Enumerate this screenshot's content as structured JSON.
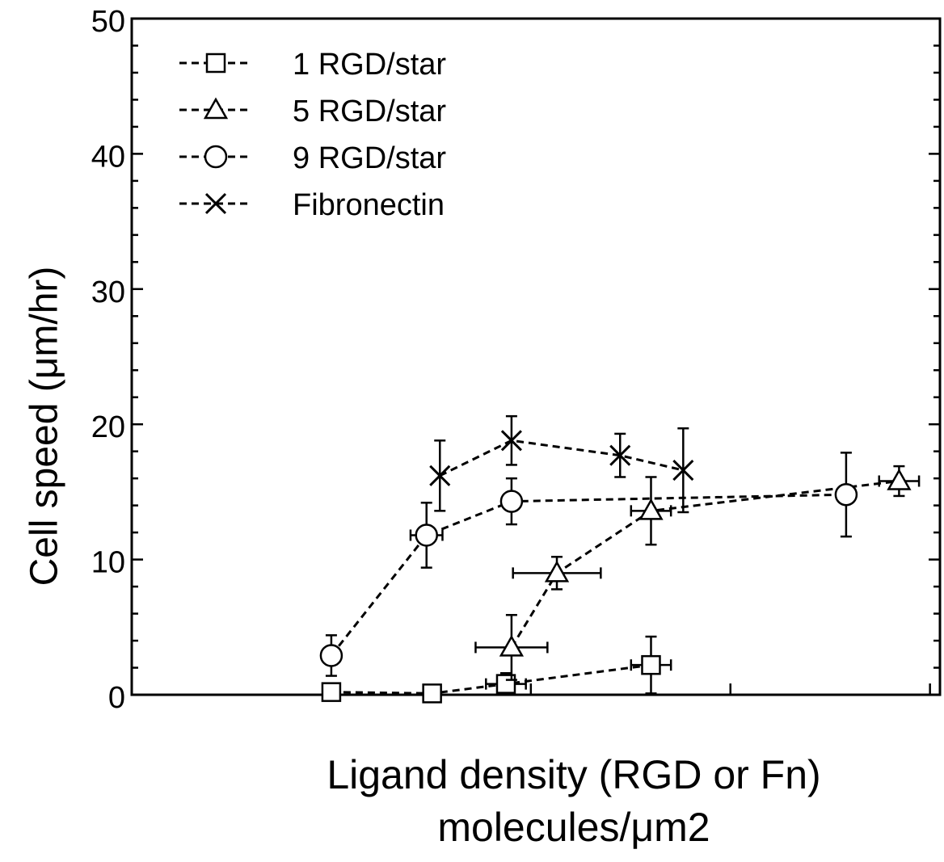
{
  "chart_data": {
    "type": "line",
    "title": "",
    "xlabel_line1": "Ligand density (RGD or Fn)",
    "xlabel_line2": "molecules/μm2",
    "ylabel": "Cell speed (μm/hr)",
    "ylim": [
      0,
      50
    ],
    "y_ticks": [
      "0",
      "10",
      "20",
      "30",
      "40",
      "50"
    ],
    "x_scale": "log",
    "x_tick_labels": [],
    "grid": false,
    "legend_position": "top-left",
    "colors": {
      "line": "#000000",
      "background": "#ffffff"
    },
    "series": [
      {
        "name": "1 RGD/star",
        "marker": "square",
        "points": [
          {
            "x": 1000,
            "y": 0.2,
            "yerr": 0.3
          },
          {
            "x": 3200,
            "y": 0.1,
            "yerr": 0.3
          },
          {
            "x": 7500,
            "y": 0.8,
            "yerr": 0.8,
            "xerr": 0.1
          },
          {
            "x": 40000,
            "y": 2.2,
            "yerr": 2.1,
            "xerr": 0.1
          }
        ]
      },
      {
        "name": "5 RGD/star",
        "marker": "triangle",
        "points": [
          {
            "x": 8000,
            "y": 3.5,
            "yerr": 2.4,
            "xerr": 0.18
          },
          {
            "x": 13500,
            "y": 9.0,
            "yerr": 1.2,
            "xerr": 0.22
          },
          {
            "x": 40000,
            "y": 13.6,
            "yerr": 2.5,
            "xerr": 0.1
          },
          {
            "x": 700000,
            "y": 15.8,
            "yerr": 1.1,
            "xerr": 0.1
          }
        ]
      },
      {
        "name": "9 RGD/star",
        "marker": "circle",
        "points": [
          {
            "x": 1000,
            "y": 2.9,
            "yerr": 1.5
          },
          {
            "x": 3000,
            "y": 11.8,
            "yerr": 2.4,
            "xerr": 0.08
          },
          {
            "x": 8000,
            "y": 14.3,
            "yerr": 1.7
          },
          {
            "x": 380000,
            "y": 14.8,
            "yerr": 3.1
          }
        ]
      },
      {
        "name": "Fibronectin",
        "marker": "x",
        "points": [
          {
            "x": 3500,
            "y": 16.2,
            "yerr": 2.6
          },
          {
            "x": 8000,
            "y": 18.8,
            "yerr": 1.8
          },
          {
            "x": 28000,
            "y": 17.7,
            "yerr": 1.6
          },
          {
            "x": 58000,
            "y": 16.6,
            "yerr": 3.1
          }
        ]
      }
    ]
  }
}
